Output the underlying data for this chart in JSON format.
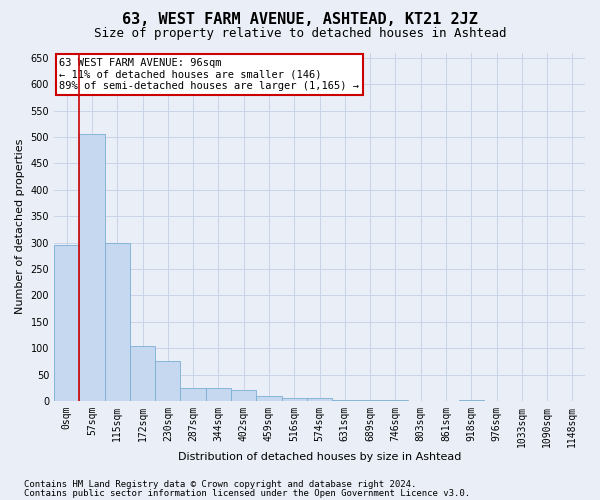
{
  "title": "63, WEST FARM AVENUE, ASHTEAD, KT21 2JZ",
  "subtitle": "Size of property relative to detached houses in Ashtead",
  "xlabel": "Distribution of detached houses by size in Ashtead",
  "ylabel": "Number of detached properties",
  "footnote1": "Contains HM Land Registry data © Crown copyright and database right 2024.",
  "footnote2": "Contains public sector information licensed under the Open Government Licence v3.0.",
  "annotation_line1": "63 WEST FARM AVENUE: 96sqm",
  "annotation_line2": "← 11% of detached houses are smaller (146)",
  "annotation_line3": "89% of semi-detached houses are larger (1,165) →",
  "bin_labels": [
    "0sqm",
    "57sqm",
    "115sqm",
    "172sqm",
    "230sqm",
    "287sqm",
    "344sqm",
    "402sqm",
    "459sqm",
    "516sqm",
    "574sqm",
    "631sqm",
    "689sqm",
    "746sqm",
    "803sqm",
    "861sqm",
    "918sqm",
    "976sqm",
    "1033sqm",
    "1090sqm",
    "1148sqm"
  ],
  "bar_values": [
    295,
    505,
    300,
    105,
    75,
    25,
    25,
    20,
    10,
    5,
    5,
    2,
    2,
    1,
    0,
    0,
    1,
    0,
    0,
    0,
    0
  ],
  "bar_color": "#c5d8f0",
  "bar_edge_color": "#7bafd4",
  "vline_color": "#cc0000",
  "vline_x": 0.5,
  "ylim": [
    0,
    660
  ],
  "yticks": [
    0,
    50,
    100,
    150,
    200,
    250,
    300,
    350,
    400,
    450,
    500,
    550,
    600,
    650
  ],
  "bg_color": "#eaeff7",
  "plot_bg_color": "#eaeff7",
  "grid_color": "#c8d4e8",
  "title_fontsize": 11,
  "subtitle_fontsize": 9,
  "axis_label_fontsize": 8,
  "tick_fontsize": 7,
  "annotation_fontsize": 7.5,
  "footnote_fontsize": 6.5
}
